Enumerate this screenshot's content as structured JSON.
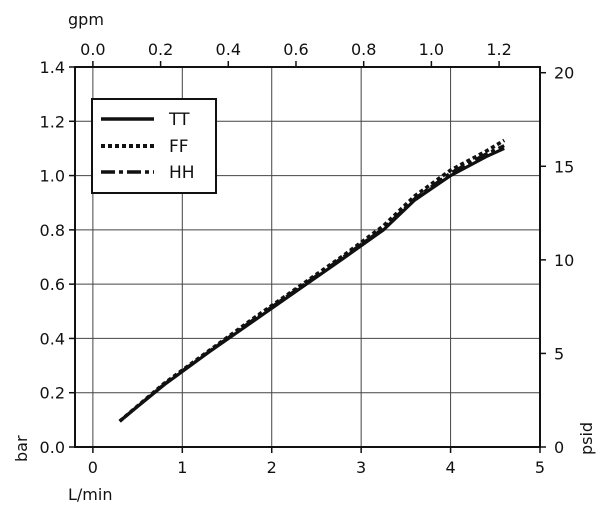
{
  "chart_data": {
    "type": "line",
    "x_axis_bottom": {
      "label": "L/min",
      "ticks": [
        0,
        1,
        2,
        3,
        4,
        5
      ],
      "tick_labels": [
        "0",
        "1",
        "2",
        "3",
        "4",
        "5"
      ],
      "range": [
        -0.2,
        5.0
      ]
    },
    "x_axis_top": {
      "label": "gpm",
      "ticks": [
        0.0,
        0.2,
        0.4,
        0.6,
        0.8,
        1.0,
        1.2
      ],
      "tick_labels": [
        "0.0",
        "0.2",
        "0.4",
        "0.6",
        "0.8",
        "1.0",
        "1.2"
      ]
    },
    "y_axis_left": {
      "label": "bar",
      "ticks": [
        0.0,
        0.2,
        0.4,
        0.6,
        0.8,
        1.0,
        1.2,
        1.4
      ],
      "tick_labels": [
        "0.0",
        "0.2",
        "0.4",
        "0.6",
        "0.8",
        "1.0",
        "1.2",
        "1.4"
      ],
      "range": [
        0.0,
        1.4
      ]
    },
    "y_axis_right": {
      "label": "psid",
      "ticks": [
        0,
        5,
        10,
        15,
        20
      ],
      "tick_labels": [
        "0",
        "5",
        "10",
        "15",
        "20"
      ]
    },
    "grid": true,
    "legend_position": "top-left",
    "series": [
      {
        "name": "TT",
        "style": "solid",
        "x": [
          0.3,
          0.8,
          1.3,
          1.8,
          2.3,
          2.8,
          3.25,
          3.6,
          4.0,
          4.4,
          4.6
        ],
        "y": [
          0.095,
          0.23,
          0.35,
          0.465,
          0.58,
          0.695,
          0.8,
          0.91,
          1.0,
          1.07,
          1.1
        ]
      },
      {
        "name": "FF",
        "style": "dotted",
        "x": [
          0.3,
          0.8,
          1.3,
          1.8,
          2.3,
          2.8,
          3.25,
          3.6,
          4.0,
          4.4,
          4.6
        ],
        "y": [
          0.095,
          0.235,
          0.355,
          0.475,
          0.59,
          0.705,
          0.815,
          0.925,
          1.02,
          1.09,
          1.13
        ]
      },
      {
        "name": "HH",
        "style": "dash-dot",
        "x": [
          0.3,
          0.8,
          1.3,
          1.8,
          2.3,
          2.8,
          3.25,
          3.6,
          4.0,
          4.4,
          4.6
        ],
        "y": [
          0.095,
          0.232,
          0.352,
          0.47,
          0.585,
          0.7,
          0.805,
          0.915,
          1.01,
          1.08,
          1.11
        ]
      }
    ],
    "colors": {
      "line": "#111111",
      "grid": "#555555",
      "background": "#ffffff"
    }
  }
}
